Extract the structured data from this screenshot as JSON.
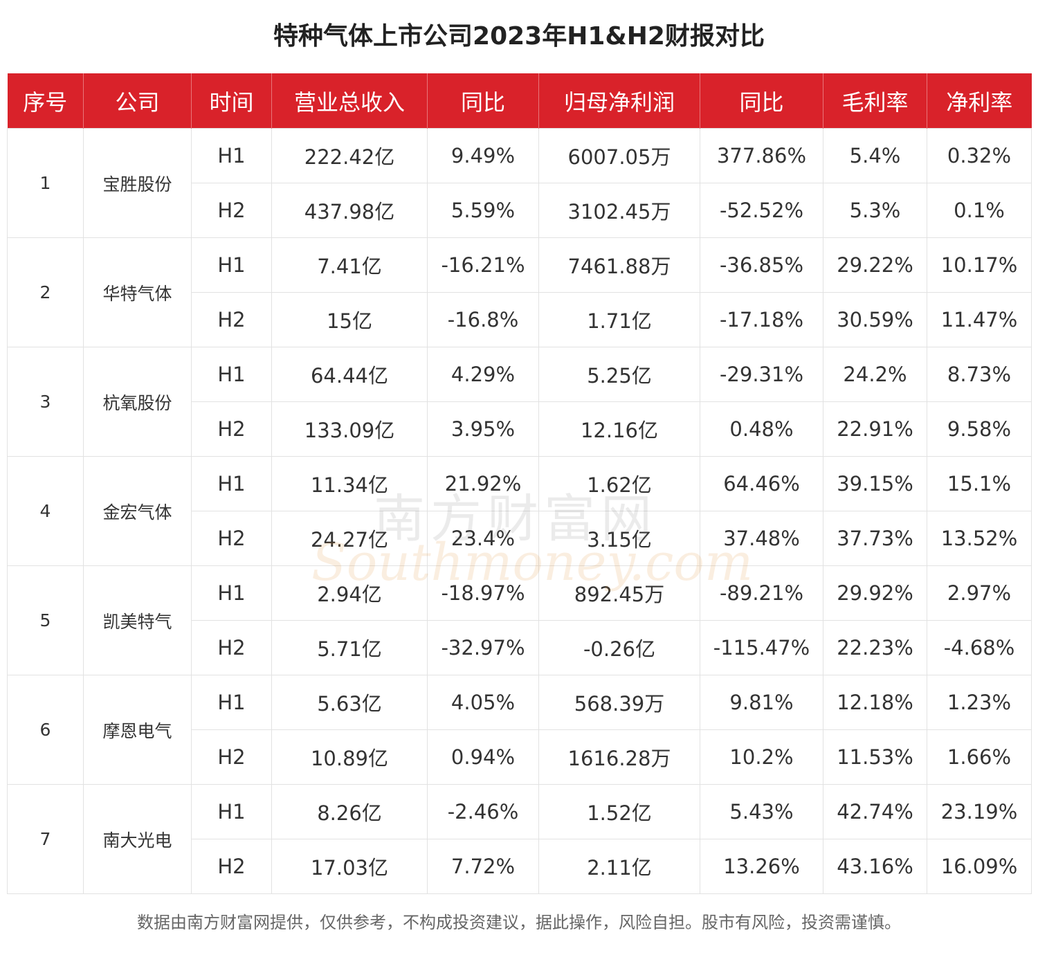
{
  "title": "特种气体上市公司2023年H1&H2财报对比",
  "watermark": {
    "cn": "南方财富网",
    "en": "Southmoney.com"
  },
  "columns": [
    "序号",
    "公司",
    "时间",
    "营业总收入",
    "同比",
    "归母净利润",
    "同比",
    "毛利率",
    "净利率"
  ],
  "companies": [
    {
      "seq": "1",
      "name": "宝胜股份",
      "rows": [
        [
          "H1",
          "222.42亿",
          "9.49%",
          "6007.05万",
          "377.86%",
          "5.4%",
          "0.32%"
        ],
        [
          "H2",
          "437.98亿",
          "5.59%",
          "3102.45万",
          "-52.52%",
          "5.3%",
          "0.1%"
        ]
      ]
    },
    {
      "seq": "2",
      "name": "华特气体",
      "rows": [
        [
          "H1",
          "7.41亿",
          "-16.21%",
          "7461.88万",
          "-36.85%",
          "29.22%",
          "10.17%"
        ],
        [
          "H2",
          "15亿",
          "-16.8%",
          "1.71亿",
          "-17.18%",
          "30.59%",
          "11.47%"
        ]
      ]
    },
    {
      "seq": "3",
      "name": "杭氧股份",
      "rows": [
        [
          "H1",
          "64.44亿",
          "4.29%",
          "5.25亿",
          "-29.31%",
          "24.2%",
          "8.73%"
        ],
        [
          "H2",
          "133.09亿",
          "3.95%",
          "12.16亿",
          "0.48%",
          "22.91%",
          "9.58%"
        ]
      ]
    },
    {
      "seq": "4",
      "name": "金宏气体",
      "rows": [
        [
          "H1",
          "11.34亿",
          "21.92%",
          "1.62亿",
          "64.46%",
          "39.15%",
          "15.1%"
        ],
        [
          "H2",
          "24.27亿",
          "23.4%",
          "3.15亿",
          "37.48%",
          "37.73%",
          "13.52%"
        ]
      ]
    },
    {
      "seq": "5",
      "name": "凯美特气",
      "rows": [
        [
          "H1",
          "2.94亿",
          "-18.97%",
          "892.45万",
          "-89.21%",
          "29.92%",
          "2.97%"
        ],
        [
          "H2",
          "5.71亿",
          "-32.97%",
          "-0.26亿",
          "-115.47%",
          "22.23%",
          "-4.68%"
        ]
      ]
    },
    {
      "seq": "6",
      "name": "摩恩电气",
      "rows": [
        [
          "H1",
          "5.63亿",
          "4.05%",
          "568.39万",
          "9.81%",
          "12.18%",
          "1.23%"
        ],
        [
          "H2",
          "10.89亿",
          "0.94%",
          "1616.28万",
          "10.2%",
          "11.53%",
          "1.66%"
        ]
      ]
    },
    {
      "seq": "7",
      "name": "南大光电",
      "rows": [
        [
          "H1",
          "8.26亿",
          "-2.46%",
          "1.52亿",
          "5.43%",
          "42.74%",
          "23.19%"
        ],
        [
          "H2",
          "17.03亿",
          "7.72%",
          "2.11亿",
          "13.26%",
          "43.16%",
          "16.09%"
        ]
      ]
    }
  ],
  "footer": "数据由南方财富网提供，仅供参考，不构成投资建议，据此操作，风险自担。股市有风险，投资需谨慎。",
  "colors": {
    "header_bg": "#d9222a",
    "header_text": "#ffffff",
    "border": "#e2e2e2"
  }
}
